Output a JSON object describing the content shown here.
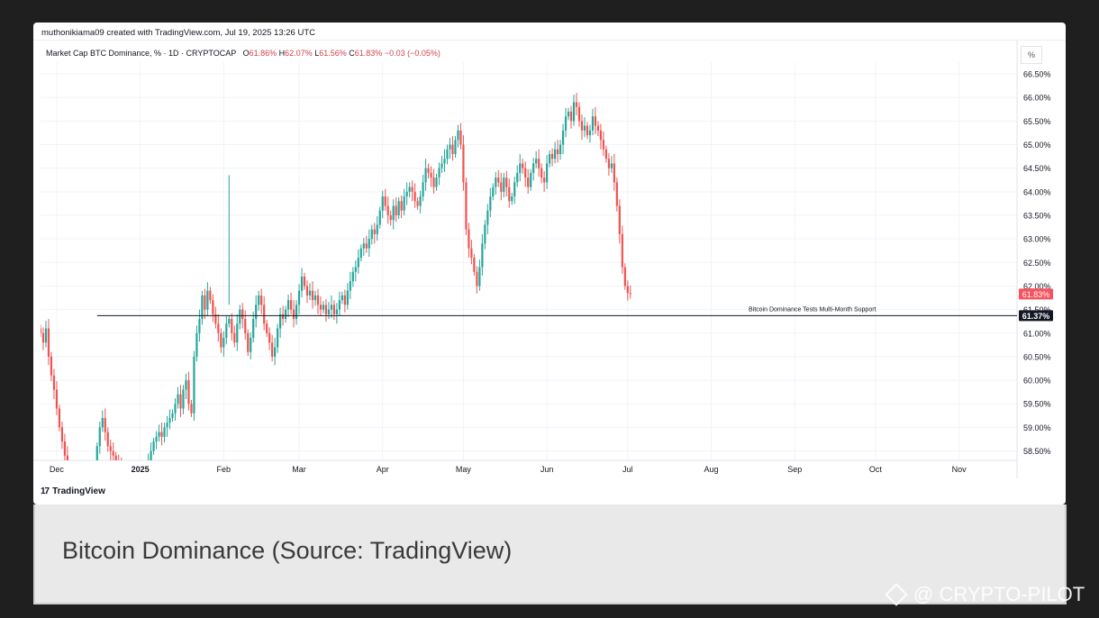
{
  "header": {
    "attribution": "muthonikiama09 created with TradingView.com, Jul 19, 2025 13:26 UTC"
  },
  "legend": {
    "symbol": "Market Cap BTC Dominance, % · 1D · CRYPTOCAP",
    "o_label": "O",
    "o_value": "61.86%",
    "h_label": "H",
    "h_value": "62.07%",
    "l_label": "L",
    "l_value": "61.56%",
    "c_label": "C",
    "c_value": "61.83%",
    "change": "−0.03 (−0.05%)"
  },
  "scale_button": "%",
  "logo": {
    "mark": "17",
    "text": "TradingView"
  },
  "caption": "Bitcoin Dominance (Source: TradingView)",
  "watermark": "@ CRYPTO-PILOT",
  "colors": {
    "up": "#26a69a",
    "down": "#ef5350",
    "price_tag": "#f7525f",
    "support_tag": "#131722"
  },
  "chart_data": {
    "type": "candlestick",
    "title": "Market Cap BTC Dominance, % · 1D · CRYPTOCAP",
    "ylabel": "%",
    "ylim": [
      58.3,
      66.75
    ],
    "x_ticks": [
      "Dec",
      "2025",
      "Feb",
      "Mar",
      "Apr",
      "May",
      "Jun",
      "Jul",
      "Aug",
      "Sep",
      "Oct",
      "Nov"
    ],
    "y_ticks": [
      "66.50%",
      "66.00%",
      "65.50%",
      "65.00%",
      "64.50%",
      "64.00%",
      "63.50%",
      "63.00%",
      "62.50%",
      "62.00%",
      "61.50%",
      "61.00%",
      "60.50%",
      "60.00%",
      "59.50%",
      "59.00%",
      "58.50%"
    ],
    "y_tick_values": [
      66.5,
      66.0,
      65.5,
      65.0,
      64.5,
      64.0,
      63.5,
      63.0,
      62.5,
      62.0,
      61.5,
      61.0,
      60.5,
      60.0,
      59.5,
      59.0,
      58.5
    ],
    "grid": true,
    "last_price": {
      "label": "61.83%",
      "value": 61.83
    },
    "support": {
      "label": "61.37%",
      "value": 61.37,
      "annotation": "Bitcoin Dominance Tests Multi-Month Support",
      "from_date": "2024-12-16"
    },
    "start_date": "2024-11-25",
    "series_close": [
      61.0,
      60.8,
      61.1,
      60.5,
      60.1,
      59.8,
      59.4,
      59.0,
      58.7,
      58.4,
      58.2,
      58.0,
      57.9,
      57.8,
      57.9,
      57.8,
      57.7,
      57.8,
      57.9,
      57.8,
      57.9,
      58.6,
      59.0,
      59.2,
      58.9,
      58.6,
      58.5,
      58.4,
      58.3,
      58.2,
      58.1,
      58.0,
      57.9,
      57.8,
      57.7,
      57.8,
      57.8,
      57.9,
      58.0,
      58.1,
      58.3,
      58.5,
      58.7,
      58.8,
      58.9,
      58.8,
      59.0,
      59.1,
      59.2,
      59.3,
      59.5,
      59.7,
      59.4,
      59.8,
      60.0,
      59.5,
      59.3,
      60.5,
      61.0,
      61.3,
      61.8,
      61.5,
      61.9,
      61.7,
      61.4,
      61.2,
      61.0,
      60.7,
      60.9,
      61.2,
      61.3,
      61.0,
      60.8,
      61.2,
      61.5,
      61.3,
      61.0,
      60.6,
      60.9,
      61.3,
      61.6,
      61.8,
      61.6,
      61.2,
      61.0,
      60.8,
      60.5,
      60.7,
      61.1,
      61.4,
      61.3,
      61.5,
      61.7,
      61.5,
      61.3,
      61.6,
      61.9,
      62.2,
      62.0,
      61.8,
      61.9,
      61.7,
      61.8,
      61.6,
      61.5,
      61.6,
      61.4,
      61.5,
      61.6,
      61.4,
      61.5,
      61.7,
      61.8,
      61.6,
      61.9,
      62.1,
      62.3,
      62.4,
      62.6,
      62.8,
      62.9,
      62.8,
      63.0,
      63.2,
      63.1,
      63.3,
      63.6,
      63.9,
      63.7,
      63.5,
      63.4,
      63.7,
      63.5,
      63.8,
      63.6,
      63.9,
      64.0,
      64.1,
      64.0,
      63.8,
      63.7,
      63.9,
      64.2,
      64.5,
      64.4,
      64.3,
      64.1,
      64.3,
      64.5,
      64.6,
      64.7,
      64.9,
      65.0,
      64.8,
      65.1,
      65.3,
      65.0,
      64.2,
      63.2,
      62.8,
      62.6,
      62.3,
      62.0,
      62.4,
      62.9,
      63.3,
      63.6,
      63.9,
      64.1,
      64.3,
      64.2,
      64.0,
      64.3,
      64.1,
      63.8,
      63.9,
      64.2,
      64.4,
      64.6,
      64.5,
      64.3,
      64.1,
      64.4,
      64.6,
      64.7,
      64.5,
      64.3,
      64.2,
      64.6,
      64.8,
      64.7,
      64.9,
      64.8,
      65.0,
      65.3,
      65.6,
      65.7,
      65.5,
      65.9,
      65.8,
      65.5,
      65.3,
      65.4,
      65.2,
      65.3,
      65.6,
      65.4,
      65.3,
      65.1,
      64.9,
      64.7,
      64.5,
      64.6,
      64.2,
      63.7,
      63.1,
      62.4,
      62.0,
      61.85,
      61.83
    ],
    "data_labels": [
      "61.83%",
      "61.37%"
    ]
  }
}
